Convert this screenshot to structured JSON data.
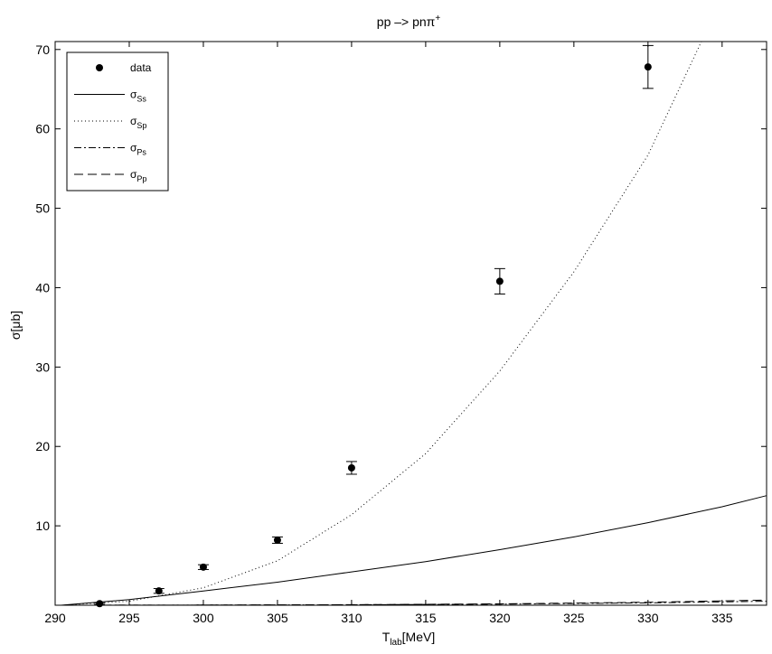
{
  "chart_data": {
    "type": "scatter",
    "title_main": "pp –> pnπ",
    "title_sup": "+",
    "xlabel_main": "T",
    "xlabel_sub": "lab",
    "xlabel_unit": "[MeV]",
    "ylabel": "σ[μb]",
    "xlim": [
      290,
      338
    ],
    "ylim": [
      0,
      71
    ],
    "xticks": [
      290,
      295,
      300,
      305,
      310,
      315,
      320,
      325,
      330,
      335
    ],
    "yticks": [
      10,
      20,
      30,
      40,
      50,
      60,
      70
    ],
    "grid": false,
    "legend_position": "top-left",
    "data_points": [
      {
        "x": 293,
        "y": 0.2,
        "err": 0.1
      },
      {
        "x": 297,
        "y": 1.8,
        "err": 0.3
      },
      {
        "x": 300,
        "y": 4.8,
        "err": 0.3
      },
      {
        "x": 305,
        "y": 8.2,
        "err": 0.4
      },
      {
        "x": 310,
        "y": 17.3,
        "err": 0.8
      },
      {
        "x": 320,
        "y": 40.8,
        "err": 1.6
      },
      {
        "x": 330,
        "y": 67.8,
        "err": 2.7
      }
    ],
    "series": [
      {
        "key": "data",
        "style": "marker",
        "legend_main": "data",
        "legend_sub": ""
      },
      {
        "key": "Ss",
        "style": "solid",
        "legend_main": "σ",
        "legend_sub": "Ss",
        "x": [
          290.4,
          295,
          300,
          305,
          310,
          315,
          320,
          325,
          330,
          335,
          338
        ],
        "y": [
          0,
          0.7,
          1.8,
          2.9,
          4.2,
          5.5,
          7.0,
          8.6,
          10.4,
          12.4,
          13.8
        ]
      },
      {
        "key": "Sp",
        "style": "dotted",
        "legend_main": "σ",
        "legend_sub": "Sp",
        "x": [
          290.4,
          295,
          300,
          305,
          310,
          315,
          320,
          325,
          330,
          333.6
        ],
        "y": [
          0,
          0.5,
          2.2,
          5.6,
          11.4,
          19.1,
          29.5,
          42.0,
          56.7,
          71
        ]
      },
      {
        "key": "Ps",
        "style": "dashdot",
        "legend_main": "σ",
        "legend_sub": "Ps",
        "x": [
          290.4,
          300,
          310,
          320,
          330,
          338
        ],
        "y": [
          0,
          0.02,
          0.06,
          0.14,
          0.3,
          0.5
        ]
      },
      {
        "key": "Pp",
        "style": "dashed",
        "legend_main": "σ",
        "legend_sub": "Pp",
        "x": [
          290.4,
          300,
          310,
          320,
          330,
          338
        ],
        "y": [
          0,
          0.02,
          0.07,
          0.17,
          0.38,
          0.65
        ]
      }
    ]
  }
}
